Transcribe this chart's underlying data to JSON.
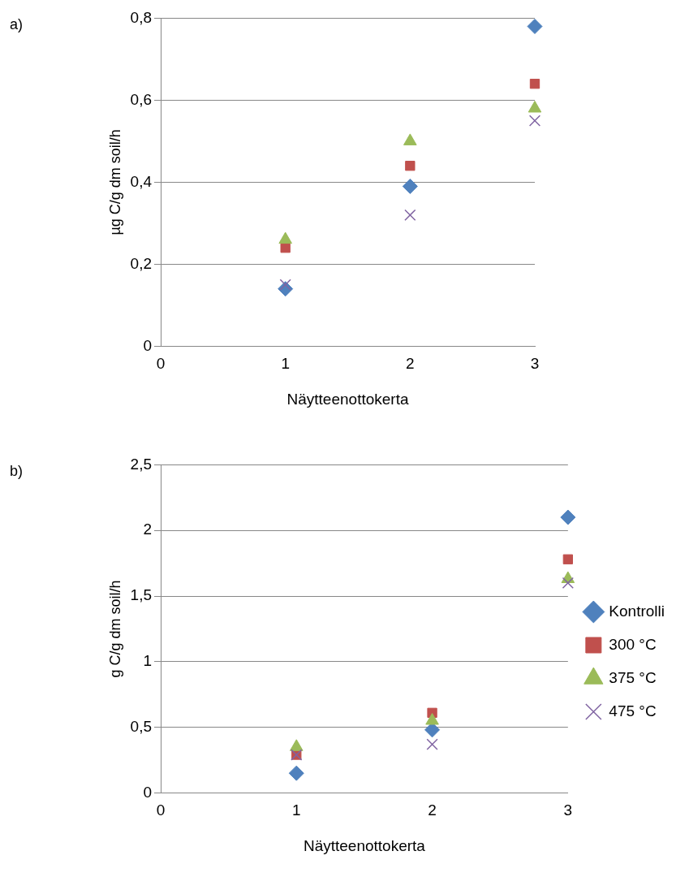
{
  "chart_data": [
    {
      "type": "scatter",
      "annotations": [
        "a)"
      ],
      "xlabel": "Näytteenottokerta",
      "ylabel": "µg C/g dm soil/h",
      "x": [
        1,
        2,
        3
      ],
      "xlim": [
        0,
        3
      ],
      "xticks": [
        0,
        1,
        2,
        3
      ],
      "ylim": [
        0,
        0.8
      ],
      "yticks": [
        {
          "value": 0,
          "label": "0"
        },
        {
          "value": 0.2,
          "label": "0,2"
        },
        {
          "value": 0.4,
          "label": "0,4"
        },
        {
          "value": 0.6,
          "label": "0,6"
        },
        {
          "value": 0.8,
          "label": "0,8"
        }
      ],
      "grid": "y",
      "legend": false,
      "series": [
        {
          "color": "#4f81bd",
          "marker": "diamond",
          "values": [
            0.14,
            0.39,
            0.78
          ]
        },
        {
          "color": "#c0504d",
          "marker": "square",
          "values": [
            0.24,
            0.44,
            0.64
          ]
        },
        {
          "color": "#9bbb59",
          "marker": "triangle",
          "values": [
            0.26,
            0.5,
            0.58
          ]
        },
        {
          "color": "#8064a2",
          "marker": "cross",
          "values": [
            0.15,
            0.32,
            0.55
          ]
        }
      ]
    },
    {
      "type": "scatter",
      "annotations": [
        "b)"
      ],
      "xlabel": "Näytteenottokerta",
      "ylabel": "g C/g dm soil/h",
      "x": [
        1,
        2,
        3
      ],
      "xlim": [
        0,
        3
      ],
      "xticks": [
        0,
        1,
        2,
        3
      ],
      "ylim": [
        0,
        2.5
      ],
      "yticks": [
        0,
        {
          "value": 0.5,
          "label": "0,5"
        },
        1,
        {
          "value": 1.5,
          "label": "1,5"
        },
        2,
        {
          "value": 2.5,
          "label": "2,5"
        }
      ],
      "grid": "y",
      "legend": "right",
      "series": [
        {
          "name": "Kontrolli",
          "color": "#4f81bd",
          "marker": "diamond",
          "values": [
            0.15,
            0.48,
            2.1
          ]
        },
        {
          "name": "300 °C",
          "color": "#c0504d",
          "marker": "square",
          "values": [
            0.29,
            0.61,
            1.78
          ]
        },
        {
          "name": "375 °C",
          "color": "#9bbb59",
          "marker": "triangle",
          "values": [
            0.35,
            0.55,
            1.63
          ]
        },
        {
          "name": "475 °C",
          "color": "#8064a2",
          "marker": "cross",
          "values": [
            0.29,
            0.37,
            1.6
          ]
        }
      ]
    }
  ]
}
